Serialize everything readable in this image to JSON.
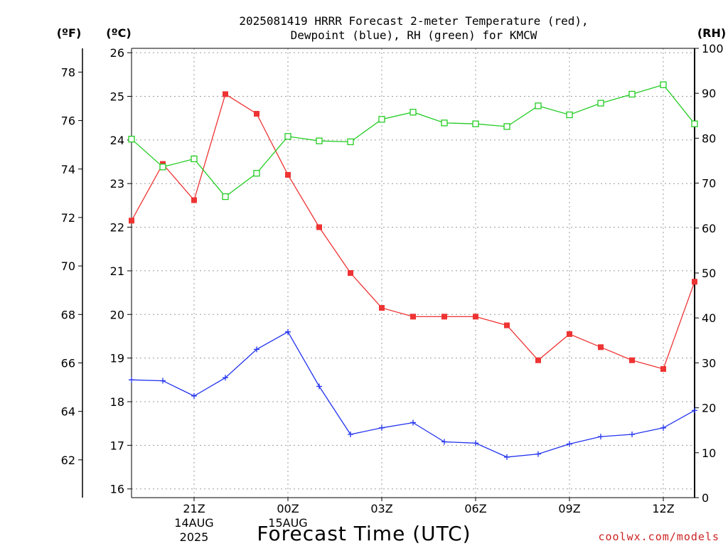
{
  "chart_data": {
    "type": "line",
    "title_lines": [
      "2025081419 HRRR Forecast 2-meter Temperature (red),",
      "Dewpoint (blue), RH (green) for KMCW"
    ],
    "xlabel": "Forecast Time (UTC)",
    "unit_labels": {
      "fahrenheit": "(ºF)",
      "celsius": "(ºC)",
      "rh": "(RH)"
    },
    "x": [
      0,
      1,
      2,
      3,
      4,
      5,
      6,
      7,
      8,
      9,
      10,
      11,
      12,
      13,
      14,
      15,
      16,
      17,
      18
    ],
    "x_ticks": [
      {
        "x": 2,
        "lines": [
          "21Z",
          "14AUG",
          "2025"
        ]
      },
      {
        "x": 5,
        "lines": [
          "00Z",
          "15AUG"
        ]
      },
      {
        "x": 8,
        "lines": [
          "03Z"
        ]
      },
      {
        "x": 11,
        "lines": [
          "06Z"
        ]
      },
      {
        "x": 14,
        "lines": [
          "09Z"
        ]
      },
      {
        "x": 17,
        "lines": [
          "12Z"
        ]
      }
    ],
    "celsius_axis": {
      "ylim": [
        15.8,
        26.1
      ],
      "ticks": [
        16,
        17,
        18,
        19,
        20,
        21,
        22,
        23,
        24,
        25,
        26
      ]
    },
    "fahrenheit_axis": {
      "ticks": [
        62,
        64,
        66,
        68,
        70,
        72,
        74,
        76,
        78
      ]
    },
    "rh_axis": {
      "ylim": [
        0,
        100
      ],
      "ticks": [
        0,
        10,
        20,
        30,
        40,
        50,
        60,
        70,
        80,
        90,
        100
      ]
    },
    "series": [
      {
        "name": "2-meter Temperature",
        "axis": "celsius",
        "color": "#ee3333",
        "marker": "filled-square",
        "values": [
          22.15,
          23.45,
          22.62,
          25.05,
          24.6,
          23.2,
          22.0,
          20.95,
          20.15,
          19.95,
          19.95,
          19.95,
          19.75,
          18.95,
          19.55,
          19.25,
          18.95,
          18.75,
          20.75
        ]
      },
      {
        "name": "Dewpoint",
        "axis": "celsius",
        "color": "#2233ee",
        "marker": "plus",
        "values": [
          18.5,
          18.48,
          18.13,
          18.55,
          19.2,
          19.6,
          18.35,
          17.25,
          17.4,
          17.52,
          17.08,
          17.05,
          16.73,
          16.8,
          17.03,
          17.2,
          17.25,
          17.4,
          17.8
        ]
      },
      {
        "name": "RH",
        "axis": "rh",
        "color": "#22cc22",
        "marker": "open-square",
        "values": [
          79.8,
          73.6,
          75.4,
          67.0,
          72.2,
          80.4,
          79.4,
          79.2,
          84.2,
          85.8,
          83.4,
          83.2,
          82.6,
          87.2,
          85.2,
          87.8,
          89.8,
          91.9,
          83.2
        ]
      }
    ]
  },
  "footer": {
    "credit": "coolwx.com/models"
  }
}
